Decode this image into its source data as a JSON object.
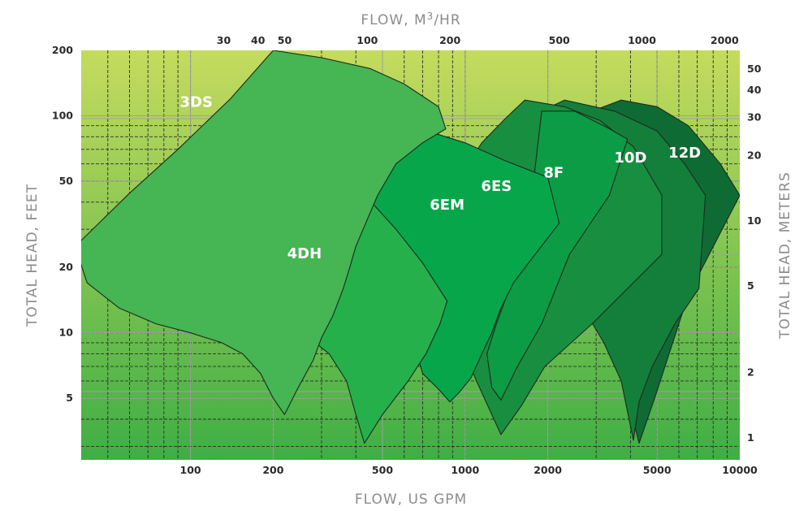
{
  "chart_data": {
    "type": "area",
    "title": "",
    "xlabel_bottom": "FLOW, US GPM",
    "xlabel_top": "FLOW, M3/HR",
    "xlabel_top_parts": {
      "base": "FLOW, M",
      "sup": "3",
      "tail": "/HR"
    },
    "ylabel_left": "TOTAL HEAD, FEET",
    "ylabel_right": "TOTAL HEAD, METERS",
    "x_scale": "log",
    "y_scale": "log",
    "xlim": [
      40,
      10000
    ],
    "ylim": [
      2.6,
      200
    ],
    "x_ticks_bottom": [
      100,
      200,
      500,
      1000,
      2000,
      5000,
      10000
    ],
    "x_ticks_bottom_labels": [
      "100",
      "200",
      "500",
      "1000",
      "2000",
      "5000",
      "10000"
    ],
    "x_ticks_top": [
      30,
      40,
      50,
      100,
      200,
      500,
      1000,
      2000
    ],
    "x_ticks_top_labels": [
      "30",
      "40",
      "50",
      "100",
      "200",
      "500",
      "1000",
      "2000"
    ],
    "y_ticks_left": [
      5,
      10,
      20,
      50,
      100,
      200
    ],
    "y_ticks_left_labels": [
      "5",
      "10",
      "20",
      "50",
      "100",
      "200"
    ],
    "y_ticks_right": [
      1,
      2,
      5,
      10,
      20,
      30,
      40,
      50
    ],
    "y_ticks_right_labels": [
      "1",
      "2",
      "5",
      "10",
      "20",
      "30",
      "40",
      "50"
    ],
    "grid": true,
    "background_gradient": [
      "#c5db5e",
      "#3fae45"
    ],
    "series": [
      {
        "name": "12D",
        "color": "#0f6b34",
        "points": [
          [
            2900,
            105
          ],
          [
            3700,
            118
          ],
          [
            5000,
            110
          ],
          [
            6500,
            90
          ],
          [
            8500,
            60
          ],
          [
            10000,
            43
          ],
          [
            6500,
            15
          ],
          [
            4900,
            5
          ],
          [
            4300,
            3.1
          ],
          [
            4000,
            4.5
          ],
          [
            3200,
            12
          ],
          [
            2400,
            32
          ],
          [
            2000,
            60
          ]
        ]
      },
      {
        "name": "10D",
        "color": "#137f3b",
        "points": [
          [
            1900,
            105
          ],
          [
            2300,
            118
          ],
          [
            3500,
            105
          ],
          [
            5000,
            85
          ],
          [
            6300,
            60
          ],
          [
            7500,
            43
          ],
          [
            7100,
            16
          ],
          [
            5800,
            11
          ],
          [
            4800,
            7
          ],
          [
            4300,
            4.8
          ],
          [
            4100,
            3.2
          ],
          [
            3700,
            6
          ],
          [
            3200,
            9
          ],
          [
            2600,
            14
          ],
          [
            2000,
            32
          ],
          [
            1500,
            60
          ]
        ]
      },
      {
        "name": "8F",
        "color": "#188f40",
        "points": [
          [
            1150,
            75
          ],
          [
            1400,
            97
          ],
          [
            1650,
            118
          ],
          [
            2300,
            110
          ],
          [
            3100,
            95
          ],
          [
            4100,
            72
          ],
          [
            5200,
            43
          ],
          [
            5200,
            23
          ],
          [
            2900,
            11
          ],
          [
            1950,
            7
          ],
          [
            1600,
            4.6
          ],
          [
            1350,
            3.4
          ],
          [
            1100,
            6
          ],
          [
            900,
            11
          ],
          [
            700,
            16
          ],
          [
            550,
            18
          ]
        ]
      },
      {
        "name": "6ES",
        "color": "#0c9c46",
        "points": [
          [
            1900,
            105
          ],
          [
            2500,
            105
          ],
          [
            3300,
            88
          ],
          [
            3900,
            78
          ],
          [
            3350,
            43
          ],
          [
            2400,
            23
          ],
          [
            1900,
            11
          ],
          [
            1550,
            7
          ],
          [
            1350,
            4.9
          ],
          [
            1250,
            5.6
          ],
          [
            1200,
            8
          ],
          [
            1300,
            11
          ],
          [
            1450,
            16
          ],
          [
            1550,
            26
          ],
          [
            1750,
            43
          ]
        ]
      },
      {
        "name": "6EM",
        "color": "#07a64b",
        "points": [
          [
            450,
            80
          ],
          [
            600,
            92
          ],
          [
            750,
            84
          ],
          [
            1000,
            75
          ],
          [
            1400,
            62
          ],
          [
            2000,
            52
          ],
          [
            2200,
            32
          ],
          [
            1800,
            23
          ],
          [
            1500,
            17
          ],
          [
            1350,
            13
          ],
          [
            1250,
            10
          ],
          [
            1150,
            8
          ],
          [
            1050,
            6.2
          ],
          [
            950,
            5.3
          ],
          [
            880,
            4.8
          ],
          [
            800,
            5.5
          ],
          [
            700,
            6.5
          ],
          [
            650,
            9
          ],
          [
            550,
            15
          ],
          [
            450,
            23
          ],
          [
            380,
            35
          ],
          [
            330,
            50
          ],
          [
            330,
            70
          ]
        ]
      },
      {
        "name": "4DH",
        "color": "#25b04c",
        "points": [
          [
            138,
            60
          ],
          [
            180,
            57
          ],
          [
            240,
            56
          ],
          [
            320,
            52
          ],
          [
            440,
            42
          ],
          [
            560,
            30
          ],
          [
            700,
            21
          ],
          [
            860,
            14
          ],
          [
            810,
            11
          ],
          [
            720,
            8
          ],
          [
            620,
            6
          ],
          [
            500,
            4.2
          ],
          [
            430,
            3.1
          ],
          [
            400,
            4.2
          ],
          [
            370,
            6
          ],
          [
            320,
            8
          ],
          [
            270,
            9.5
          ],
          [
            210,
            11.5
          ],
          [
            145,
            12.5
          ],
          [
            125,
            13
          ]
        ]
      },
      {
        "name": "3DS",
        "color": "#46b553",
        "points": [
          [
            200,
            200
          ],
          [
            300,
            185
          ],
          [
            450,
            165
          ],
          [
            600,
            140
          ],
          [
            800,
            110
          ],
          [
            850,
            87
          ],
          [
            700,
            75
          ],
          [
            560,
            60
          ],
          [
            480,
            43
          ],
          [
            400,
            25
          ],
          [
            380,
            20
          ],
          [
            360,
            16
          ],
          [
            330,
            12
          ],
          [
            300,
            9.5
          ],
          [
            280,
            7.5
          ],
          [
            245,
            5.5
          ],
          [
            220,
            4.2
          ],
          [
            200,
            5
          ],
          [
            180,
            6.5
          ],
          [
            155,
            8
          ],
          [
            130,
            9
          ],
          [
            100,
            10
          ],
          [
            75,
            11
          ],
          [
            55,
            13
          ],
          [
            42,
            17
          ],
          [
            38,
            25
          ],
          [
            60,
            44
          ],
          [
            90,
            70
          ],
          [
            140,
            120
          ]
        ]
      }
    ],
    "labels": [
      {
        "text": "3DS",
        "x": 105,
        "y": 110
      },
      {
        "text": "4DH",
        "x": 260,
        "y": 22
      },
      {
        "text": "6EM",
        "x": 860,
        "y": 37
      },
      {
        "text": "6ES",
        "x": 1300,
        "y": 45
      },
      {
        "text": "8F",
        "x": 2100,
        "y": 52
      },
      {
        "text": "10D",
        "x": 4000,
        "y": 61
      },
      {
        "text": "12D",
        "x": 6300,
        "y": 64
      }
    ]
  }
}
